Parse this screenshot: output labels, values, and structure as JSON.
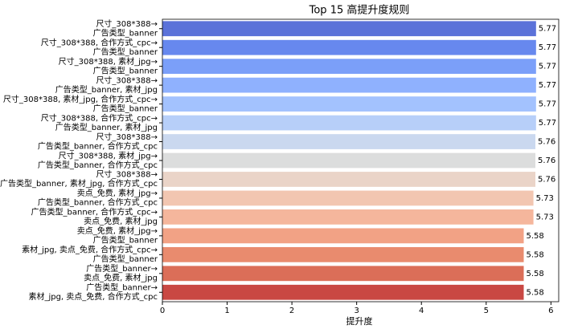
{
  "chart_data": {
    "type": "barh",
    "title": "Top 15 高提升度规则",
    "xlabel": "提升度",
    "categories": [
      "尺寸_308*388→\n广告类型_banner",
      "尺寸_308*388, 合作方式_cpc→\n广告类型_banner",
      "尺寸_308*388, 素材_jpg→\n广告类型_banner",
      "尺寸_308*388→\n广告类型_banner, 素材_jpg",
      "尺寸_308*388, 素材_jpg, 合作方式_cpc→\n广告类型_banner",
      "尺寸_308*388, 合作方式_cpc→\n广告类型_banner, 素材_jpg",
      "尺寸_308*388→\n广告类型_banner, 合作方式_cpc",
      "尺寸_308*388, 素材_jpg→\n广告类型_banner, 合作方式_cpc",
      "尺寸_308*388→\n广告类型_banner, 素材_jpg, 合作方式_cpc",
      "卖点_免费, 素材_jpg→\n广告类型_banner, 合作方式_cpc",
      "广告类型_banner, 合作方式_cpc→\n卖点_免费, 素材_jpg",
      "卖点_免费, 素材_jpg→\n广告类型_banner",
      "素材_jpg, 卖点_免费, 合作方式_cpc→\n广告类型_banner",
      "广告类型_banner→\n卖点_免费, 素材_jpg",
      "广告类型_banner→\n素材_jpg, 卖点_免费, 合作方式_cpc"
    ],
    "values": [
      5.77,
      5.77,
      5.77,
      5.77,
      5.77,
      5.77,
      5.76,
      5.76,
      5.76,
      5.73,
      5.73,
      5.58,
      5.58,
      5.58,
      5.58
    ],
    "colors": [
      "#5b72d9",
      "#6788ee",
      "#7b9ff9",
      "#8fb1fe",
      "#a3c2fe",
      "#b7cff9",
      "#cad8ef",
      "#dcdddd",
      "#ead4c8",
      "#f2c6b1",
      "#f5b69c",
      "#f2a285",
      "#e98b6e",
      "#db6e58",
      "#c94843"
    ],
    "xlim": [
      0,
      6.12
    ],
    "xticks": [
      0,
      1,
      2,
      3,
      4,
      5,
      6
    ]
  }
}
